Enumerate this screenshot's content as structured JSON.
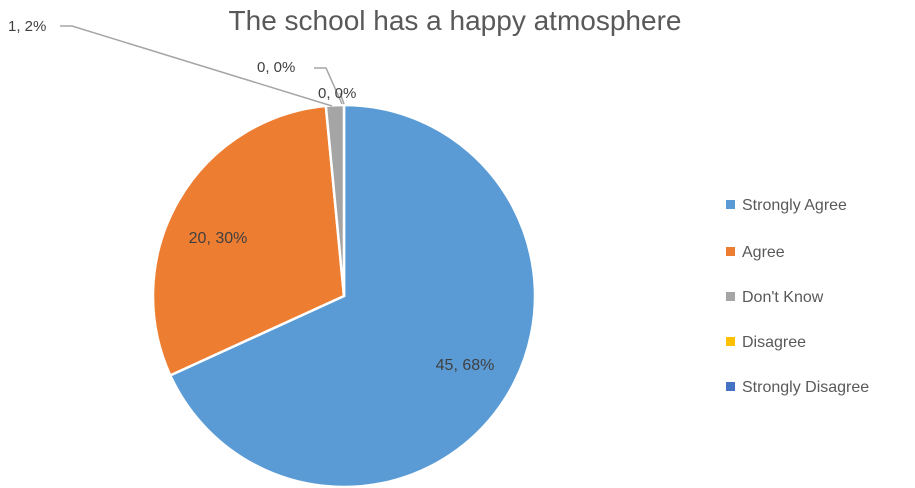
{
  "chart_data": {
    "type": "pie",
    "title": "The school has a happy atmosphere",
    "categories": [
      "Strongly Agree",
      "Agree",
      "Don't Know",
      "Disagree",
      "Strongly Disagree"
    ],
    "values": [
      45,
      20,
      1,
      0,
      0
    ],
    "percent_labels": [
      "68%",
      "30%",
      "2%",
      "0%",
      "0%"
    ],
    "data_labels": [
      "45, 68%",
      "20, 30%",
      "1, 2%",
      "0, 0%",
      "0, 0%"
    ],
    "colors": [
      "#5B9BD5",
      "#ED7D31",
      "#A5A5A5",
      "#FFC000",
      "#4472C4"
    ],
    "legend_position": "right"
  }
}
